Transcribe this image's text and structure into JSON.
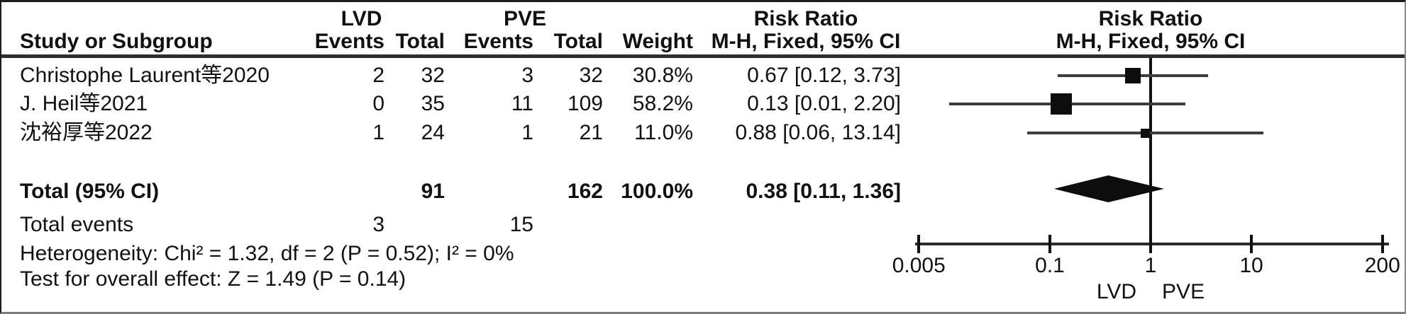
{
  "colors": {
    "ink": "#111111",
    "ci_line": "#3d3d3d",
    "marker": "#0d0d0d",
    "rule": "#2e2e2e"
  },
  "table_header": {
    "study_col": "Study or Subgroup",
    "group1": "LVD",
    "group2": "PVE",
    "events1": "Events",
    "total1": "Total",
    "events2": "Events",
    "total2": "Total",
    "weight": "Weight",
    "rr_text_line1": "Risk Ratio",
    "rr_text_line2": "M-H, Fixed, 95% CI",
    "rr_plot_line1": "Risk Ratio",
    "rr_plot_line2": "M-H, Fixed, 95% CI"
  },
  "footnotes": {
    "heterogeneity": "Heterogeneity: Chi² = 1.32, df = 2 (P = 0.52); I² = 0%",
    "overall_effect": "Test for overall effect: Z = 1.49 (P = 0.14)"
  },
  "chart_data": {
    "type": "scatter",
    "subtype": "forest-plot",
    "effect_measure": "Risk Ratio, M-H, Fixed, 95% CI",
    "x_scale": "log10",
    "xlim": [
      0.005,
      200
    ],
    "axis_ticks": [
      0.005,
      0.1,
      1,
      10,
      200
    ],
    "axis_tick_labels": [
      "0.005",
      "0.1",
      "1",
      "10",
      "200"
    ],
    "footer_left": "LVD",
    "footer_right": "PVE",
    "studies": [
      {
        "name": "Christophe Laurent等2020",
        "events_lvd": 2,
        "total_lvd": 32,
        "events_pve": 3,
        "total_pve": 32,
        "weight_pct": 30.8,
        "weight_label": "30.8%",
        "rr": 0.67,
        "ci_low": 0.12,
        "ci_high": 3.73,
        "rr_label": "0.67 [0.12, 3.73]"
      },
      {
        "name": "J. Heil等2021",
        "events_lvd": 0,
        "total_lvd": 35,
        "events_pve": 11,
        "total_pve": 109,
        "weight_pct": 58.2,
        "weight_label": "58.2%",
        "rr": 0.13,
        "ci_low": 0.01,
        "ci_high": 2.2,
        "rr_label": "0.13 [0.01, 2.20]"
      },
      {
        "name": "沈裕厚等2022",
        "events_lvd": 1,
        "total_lvd": 24,
        "events_pve": 1,
        "total_pve": 21,
        "weight_pct": 11.0,
        "weight_label": "11.0%",
        "rr": 0.88,
        "ci_low": 0.06,
        "ci_high": 13.14,
        "rr_label": "0.88 [0.06, 13.14]"
      }
    ],
    "total": {
      "label": "Total (95% CI)",
      "total_lvd": 91,
      "total_pve": 162,
      "weight_label": "100.0%",
      "rr": 0.38,
      "ci_low": 0.11,
      "ci_high": 1.36,
      "rr_label": "0.38 [0.11, 1.36]"
    },
    "total_events": {
      "label": "Total events",
      "lvd": 3,
      "pve": 15
    }
  }
}
